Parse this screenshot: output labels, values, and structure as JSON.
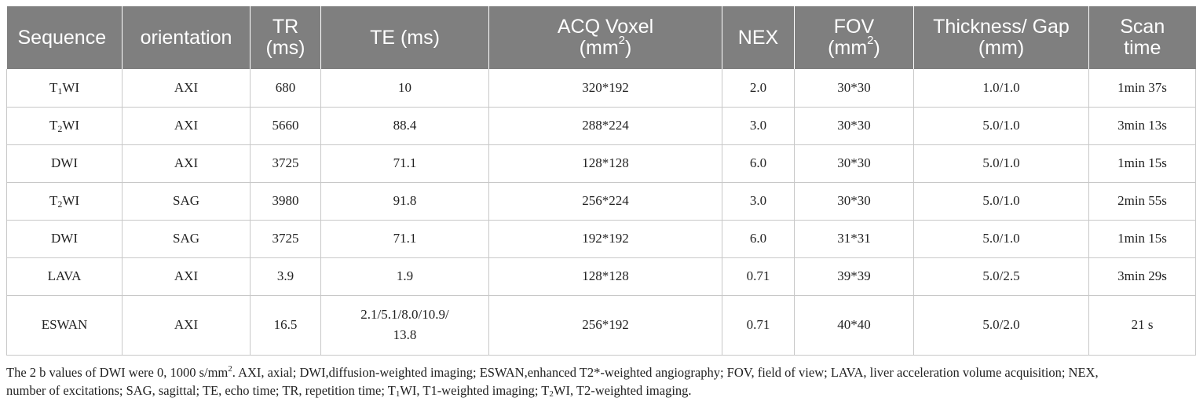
{
  "table": {
    "headers": [
      {
        "main": "Sequence",
        "sub": "",
        "sup": "",
        "tail": ""
      },
      {
        "main": "orientation",
        "sub": "",
        "sup": "",
        "tail": ""
      },
      {
        "main": "TR",
        "sub": "(ms)",
        "sup": "",
        "tail": ""
      },
      {
        "main": "TE (ms)",
        "sub": "",
        "sup": "",
        "tail": ""
      },
      {
        "main": "ACQ Voxel",
        "sub": "(mm",
        "sup": "2",
        "tail": ")"
      },
      {
        "main": "NEX",
        "sub": "",
        "sup": "",
        "tail": ""
      },
      {
        "main": "FOV",
        "sub": "(mm",
        "sup": "2",
        "tail": ")"
      },
      {
        "main": "Thickness/ Gap",
        "sub": "(mm)",
        "sup": "",
        "tail": ""
      },
      {
        "main": "Scan",
        "sub": "time",
        "sup": "",
        "tail": ""
      }
    ],
    "rows": [
      {
        "seq": {
          "a": "T",
          "s": "1",
          "b": "WI"
        },
        "orientation": "AXI",
        "tr": "680",
        "te": [
          "10"
        ],
        "voxel": "320*192",
        "nex": "2.0",
        "fov": "30*30",
        "thickness": "1.0/1.0",
        "time": "1min 37s"
      },
      {
        "seq": {
          "a": "T",
          "s": "2",
          "b": "WI"
        },
        "orientation": "AXI",
        "tr": "5660",
        "te": [
          "88.4"
        ],
        "voxel": "288*224",
        "nex": "3.0",
        "fov": "30*30",
        "thickness": "5.0/1.0",
        "time": "3min 13s"
      },
      {
        "seq": {
          "a": "DWI",
          "s": "",
          "b": ""
        },
        "orientation": "AXI",
        "tr": "3725",
        "te": [
          "71.1"
        ],
        "voxel": "128*128",
        "nex": "6.0",
        "fov": "30*30",
        "thickness": "5.0/1.0",
        "time": "1min 15s"
      },
      {
        "seq": {
          "a": "T",
          "s": "2",
          "b": "WI"
        },
        "orientation": "SAG",
        "tr": "3980",
        "te": [
          "91.8"
        ],
        "voxel": "256*224",
        "nex": "3.0",
        "fov": "30*30",
        "thickness": "5.0/1.0",
        "time": "2min 55s"
      },
      {
        "seq": {
          "a": "DWI",
          "s": "",
          "b": ""
        },
        "orientation": "SAG",
        "tr": "3725",
        "te": [
          "71.1"
        ],
        "voxel": "192*192",
        "nex": "6.0",
        "fov": "31*31",
        "thickness": "5.0/1.0",
        "time": "1min 15s"
      },
      {
        "seq": {
          "a": "LAVA",
          "s": "",
          "b": ""
        },
        "orientation": "AXI",
        "tr": "3.9",
        "te": [
          "1.9"
        ],
        "voxel": "128*128",
        "nex": "0.71",
        "fov": "39*39",
        "thickness": "5.0/2.5",
        "time": "3min 29s"
      },
      {
        "seq": {
          "a": "ESWAN",
          "s": "",
          "b": ""
        },
        "orientation": "AXI",
        "tr": "16.5",
        "te": [
          "2.1/5.1/8.0/10.9/",
          "13.8"
        ],
        "voxel": "256*192",
        "nex": "0.71",
        "fov": "40*40",
        "thickness": "5.0/2.0",
        "time": "21 s"
      }
    ]
  },
  "footnote": {
    "part1": "The 2 b values of DWI were 0, 1000 s/mm",
    "sup": "2",
    "part2": ". AXI, axial; DWI,diffusion-weighted imaging; ESWAN,enhanced T2*-weighted angiography; FOV, field of view; LAVA, liver acceleration volume acquisition; NEX, number of excitations; SAG, sagittal; TE, echo time; TR, repetition time; T",
    "sub1": "1",
    "part3": "WI, T1-weighted imaging; T",
    "sub2": "2",
    "part4": "WI, T2-weighted imaging."
  },
  "colors": {
    "header_bg": "#7f7f7f",
    "header_text": "#ffffff",
    "grid": "#c8c8c8"
  }
}
